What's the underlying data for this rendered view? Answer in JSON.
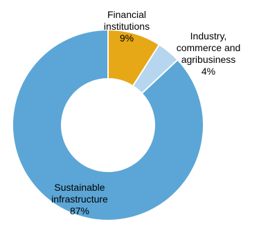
{
  "chart_data": {
    "type": "pie",
    "donut": true,
    "start_angle_deg": 0,
    "direction": "clockwise",
    "slices": [
      {
        "label_lines": [
          "Financial",
          "institutions"
        ],
        "value": 9,
        "value_label": "9%",
        "color": "#E6A817"
      },
      {
        "label_lines": [
          "Industry,",
          "commerce and",
          "agribusiness"
        ],
        "value": 4,
        "value_label": "4%",
        "color": "#B5D6EE"
      },
      {
        "label_lines": [
          "Sustainable",
          "infrastructure"
        ],
        "value": 87,
        "value_label": "87%",
        "color": "#5BA6D6"
      }
    ]
  }
}
